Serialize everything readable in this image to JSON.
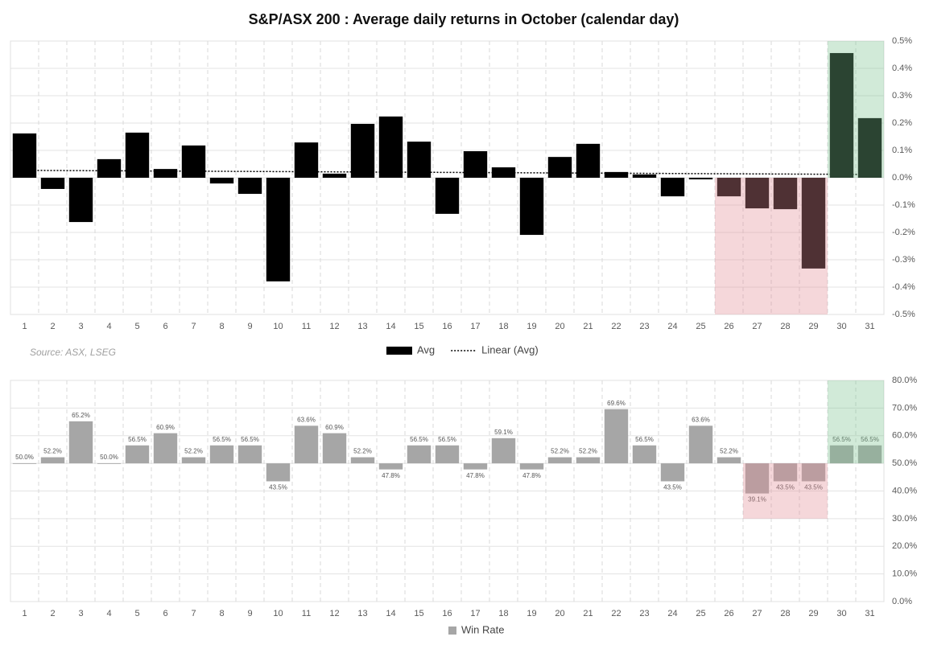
{
  "chart_data": [
    {
      "type": "bar",
      "title": "S&P/ASX 200 : Average daily returns in October (calendar day)",
      "source": "Source: ASX, LSEG",
      "categories": [
        "1",
        "2",
        "3",
        "4",
        "5",
        "6",
        "7",
        "8",
        "9",
        "10",
        "11",
        "12",
        "13",
        "14",
        "15",
        "16",
        "17",
        "18",
        "19",
        "20",
        "21",
        "22",
        "23",
        "24",
        "25",
        "26",
        "27",
        "28",
        "29",
        "30",
        "31"
      ],
      "series": [
        {
          "name": "Avg",
          "color": "#000000",
          "values": [
            0.162,
            -0.041,
            -0.162,
            0.068,
            0.165,
            0.032,
            0.118,
            -0.021,
            -0.059,
            -0.379,
            0.129,
            0.015,
            0.197,
            0.224,
            0.132,
            -0.132,
            0.097,
            0.038,
            -0.209,
            0.076,
            0.124,
            0.021,
            0.012,
            -0.068,
            -0.006,
            -0.068,
            -0.112,
            -0.115,
            -0.332,
            0.456,
            0.218
          ]
        }
      ],
      "trendline": {
        "name": "Linear (Avg)",
        "color": "#000000",
        "values": [
          0.027,
          0.012
        ]
      },
      "base": 0,
      "ylim": [
        -0.5,
        0.5
      ],
      "yticks": [
        {
          "value": -0.5,
          "label": "-0.5%"
        },
        {
          "value": -0.4,
          "label": "-0.4%"
        },
        {
          "value": -0.3,
          "label": "-0.3%"
        },
        {
          "value": -0.2,
          "label": "-0.2%"
        },
        {
          "value": -0.1,
          "label": "-0.1%"
        },
        {
          "value": 0,
          "label": "0.0%"
        },
        {
          "value": 0.1,
          "label": "0.1%"
        },
        {
          "value": 0.2,
          "label": "0.2%"
        },
        {
          "value": 0.3,
          "label": "0.3%"
        },
        {
          "value": 0.4,
          "label": "0.4%"
        },
        {
          "value": 0.5,
          "label": "0.5%"
        }
      ],
      "highlights": [
        {
          "from": "26",
          "to": "29",
          "y_range": [
            -0.5,
            0
          ],
          "color": "#e38b96"
        },
        {
          "from": "30",
          "to": "31",
          "y_range": [
            0,
            0.5
          ],
          "color": "#7cc48e"
        }
      ],
      "grid": true
    },
    {
      "type": "bar",
      "categories": [
        "1",
        "2",
        "3",
        "4",
        "5",
        "6",
        "7",
        "8",
        "9",
        "10",
        "11",
        "12",
        "13",
        "14",
        "15",
        "16",
        "17",
        "18",
        "19",
        "20",
        "21",
        "22",
        "23",
        "24",
        "25",
        "26",
        "27",
        "28",
        "29",
        "30",
        "31"
      ],
      "series": [
        {
          "name": "Win Rate",
          "color": "#a6a6a6",
          "values": [
            50.0,
            52.2,
            65.2,
            50.0,
            56.5,
            60.9,
            52.2,
            56.5,
            56.5,
            43.5,
            63.6,
            60.9,
            52.2,
            47.8,
            56.5,
            56.5,
            47.8,
            59.1,
            47.8,
            52.2,
            52.2,
            69.6,
            56.5,
            43.5,
            63.6,
            52.2,
            39.1,
            43.5,
            43.5,
            56.5,
            56.5
          ],
          "value_labels": [
            "50.0%",
            "52.2%",
            "65.2%",
            "50.0%",
            "56.5%",
            "60.9%",
            "52.2%",
            "56.5%",
            "56.5%",
            "43.5%",
            "63.6%",
            "60.9%",
            "52.2%",
            "47.8%",
            "56.5%",
            "56.5%",
            "47.8%",
            "59.1%",
            "47.8%",
            "52.2%",
            "52.2%",
            "69.6%",
            "56.5%",
            "43.5%",
            "63.6%",
            "52.2%",
            "39.1%",
            "43.5%",
            "43.5%",
            "56.5%",
            "56.5%"
          ]
        }
      ],
      "base": 50,
      "ylim": [
        0,
        80
      ],
      "yticks": [
        {
          "value": 0,
          "label": "0.0%"
        },
        {
          "value": 10,
          "label": "10.0%"
        },
        {
          "value": 20,
          "label": "20.0%"
        },
        {
          "value": 30,
          "label": "30.0%"
        },
        {
          "value": 40,
          "label": "40.0%"
        },
        {
          "value": 50,
          "label": "50.0%"
        },
        {
          "value": 60,
          "label": "60.0%"
        },
        {
          "value": 70,
          "label": "70.0%"
        },
        {
          "value": 80,
          "label": "80.0%"
        }
      ],
      "highlights": [
        {
          "from": "27",
          "to": "29",
          "y_range": [
            30,
            50
          ],
          "color": "#e38b96"
        },
        {
          "from": "30",
          "to": "31",
          "y_range": [
            50,
            80
          ],
          "color": "#7cc48e"
        }
      ],
      "grid": true
    }
  ]
}
